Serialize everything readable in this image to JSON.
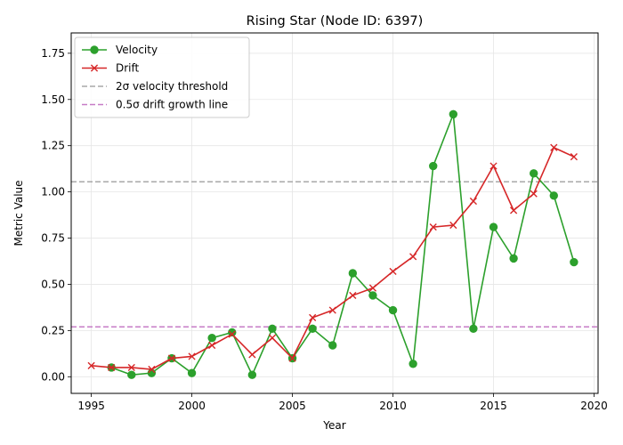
{
  "chart_data": {
    "type": "line",
    "title": "Rising Star (Node ID: 6397)",
    "xlabel": "Year",
    "ylabel": "Metric Value",
    "xlim": [
      1994.0,
      2020.2
    ],
    "ylim": [
      -0.09,
      1.86
    ],
    "xticks": [
      1995,
      2000,
      2005,
      2010,
      2015,
      2020
    ],
    "yticks": [
      0.0,
      0.25,
      0.5,
      0.75,
      1.0,
      1.25,
      1.5,
      1.75
    ],
    "ytick_labels": [
      "0.00",
      "0.25",
      "0.50",
      "0.75",
      "1.00",
      "1.25",
      "1.50",
      "1.75"
    ],
    "grid": true,
    "legend_position": "upper-left",
    "series": [
      {
        "name": "Velocity",
        "color": "#2ca02c",
        "marker": "circle",
        "x": [
          1996,
          1997,
          1998,
          1999,
          2000,
          2001,
          2002,
          2003,
          2004,
          2005,
          2006,
          2007,
          2008,
          2009,
          2010,
          2011,
          2012,
          2013,
          2014,
          2015,
          2016,
          2017,
          2018,
          2019
        ],
        "y": [
          0.05,
          0.01,
          0.02,
          0.1,
          0.02,
          0.21,
          0.24,
          0.01,
          0.26,
          0.1,
          0.26,
          0.17,
          0.56,
          0.44,
          0.36,
          0.07,
          1.14,
          1.42,
          0.26,
          0.81,
          0.64,
          1.1,
          0.98,
          0.62
        ]
      },
      {
        "name": "Drift",
        "color": "#d62728",
        "marker": "x",
        "x": [
          1995,
          1996,
          1997,
          1998,
          1999,
          2000,
          2001,
          2002,
          2003,
          2004,
          2005,
          2006,
          2007,
          2008,
          2009,
          2010,
          2011,
          2012,
          2013,
          2014,
          2015,
          2016,
          2017,
          2018,
          2019
        ],
        "y": [
          0.06,
          0.05,
          0.05,
          0.04,
          0.1,
          0.11,
          0.17,
          0.23,
          0.12,
          0.21,
          0.1,
          0.32,
          0.36,
          0.44,
          0.48,
          0.57,
          0.65,
          0.81,
          0.82,
          0.95,
          1.14,
          0.9,
          0.99,
          1.24,
          1.19
        ]
      }
    ],
    "reference_lines": [
      {
        "name": "2σ velocity threshold",
        "y": 1.055,
        "color": "#a9a9a9",
        "style": "dashed"
      },
      {
        "name": "0.5σ drift growth line",
        "y": 0.27,
        "color": "#c77cc7",
        "style": "dashed"
      }
    ]
  }
}
